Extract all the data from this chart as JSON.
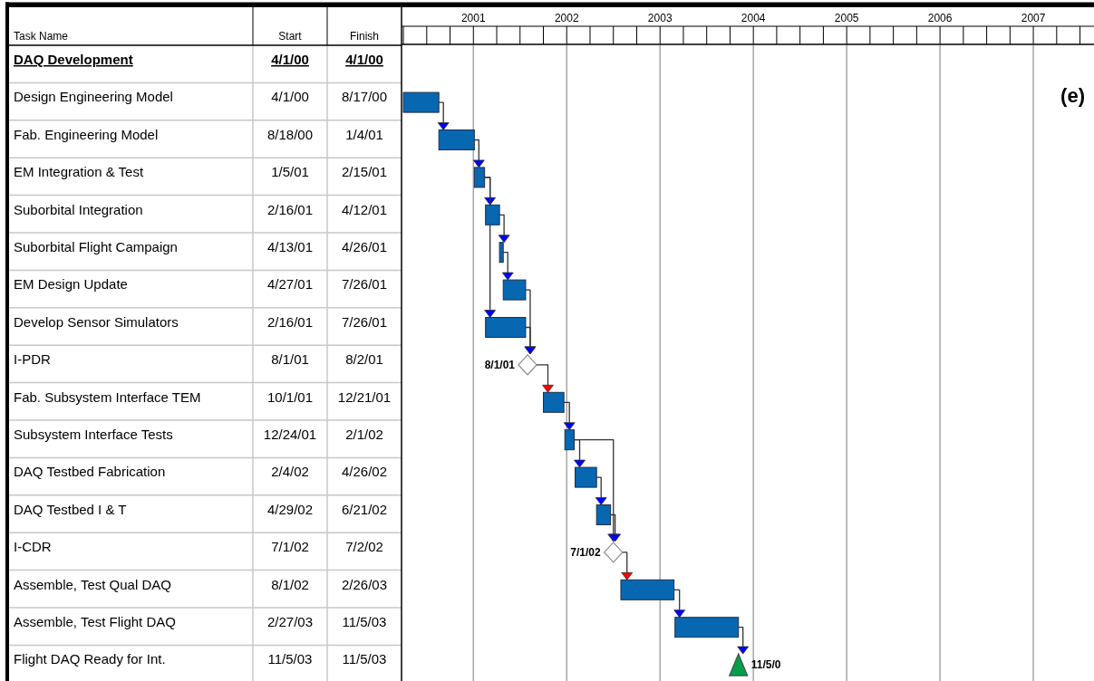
{
  "chart_data": [
    {
      "type": "heatmap",
      "ylabel": "Task Name",
      "categories": [
        "Start",
        "Finish"
      ],
      "y_categories": [
        "DAQ Development",
        "Design Engineering Model",
        "Fab. Engineering Model",
        "EM Integration & Test",
        "Suborbital Integration",
        "Suborbital Flight Campaign",
        "EM Design Update",
        "Develop Sensor Simulators",
        "I-PDR",
        "Fab. Subsystem Interface TEM",
        "Subsystem Interface Tests",
        "DAQ Testbed Fabrication",
        "DAQ Testbed I & T",
        "I-CDR",
        "Assemble, Test Qual DAQ",
        "Assemble, Test Flight DAQ",
        "Flight DAQ Ready for Int."
      ],
      "cells": [
        [
          null,
          null
        ],
        [
          null,
          null
        ],
        [
          null,
          null
        ],
        [
          null,
          null
        ],
        [
          null,
          null
        ],
        [
          null,
          null
        ],
        [
          null,
          null
        ],
        [
          null,
          null
        ],
        [
          null,
          null
        ],
        [
          null,
          null
        ],
        [
          null,
          null
        ],
        [
          null,
          null
        ],
        [
          null,
          null
        ],
        [
          null,
          null
        ],
        [
          null,
          null
        ],
        [
          null,
          null
        ],
        [
          null,
          null
        ]
      ],
      "cell_labels": [
        [
          "4/1/00",
          "4/1/00"
        ],
        [
          "4/1/00",
          "8/17/00"
        ],
        [
          "8/18/00",
          "1/4/01"
        ],
        [
          "1/5/01",
          "2/15/01"
        ],
        [
          "2/16/01",
          "4/12/01"
        ],
        [
          "4/13/01",
          "4/26/01"
        ],
        [
          "4/27/01",
          "7/26/01"
        ],
        [
          "2/16/01",
          "7/26/01"
        ],
        [
          "8/1/01",
          "8/2/01"
        ],
        [
          "10/1/01",
          "12/21/01"
        ],
        [
          "12/24/01",
          "2/1/02"
        ],
        [
          "2/4/02",
          "4/26/02"
        ],
        [
          "4/29/02",
          "6/21/02"
        ],
        [
          "7/1/02",
          "7/2/02"
        ],
        [
          "8/1/02",
          "2/26/03"
        ],
        [
          "2/27/03",
          "11/5/03"
        ],
        [
          "11/5/03",
          "11/5/03"
        ]
      ]
    },
    {
      "type": "bar",
      "orientation": "horizontal",
      "grid": "x",
      "tick_labels": "x",
      "categories": [
        null,
        null,
        null,
        null,
        null,
        null,
        null,
        null,
        null,
        null,
        null,
        null,
        null,
        null,
        null,
        null,
        null
      ],
      "xlim": [
        2000.23,
        2007.65
      ],
      "xticks": [
        2001,
        2002,
        2003,
        2004,
        2005,
        2006,
        2007
      ],
      "series": [
        {
          "type": "bar",
          "color": "#0767b1",
          "base": [
            null,
            2000.25,
            2000.63,
            2001.01,
            2001.13,
            2001.28,
            2001.32,
            2001.13,
            null,
            2001.75,
            2001.98,
            2002.09,
            2002.32,
            null,
            2002.58,
            2003.16,
            null
          ],
          "values": [
            null,
            0.38,
            0.38,
            0.11,
            0.15,
            0.04,
            0.24,
            0.43,
            null,
            0.22,
            0.1,
            0.23,
            0.15,
            null,
            0.57,
            0.68,
            null
          ]
        },
        {
          "type": "scatter",
          "marker": "diamond",
          "color": "#ffffff",
          "values": [
            null,
            null,
            null,
            null,
            null,
            null,
            null,
            null,
            2001.58,
            null,
            null,
            null,
            null,
            2002.5,
            null,
            null,
            null
          ],
          "value_labels": [
            null,
            null,
            null,
            null,
            null,
            null,
            null,
            null,
            "8/1/01",
            null,
            null,
            null,
            null,
            "7/1/02",
            null,
            null,
            null
          ]
        },
        {
          "type": "scatter",
          "marker": "triangle",
          "color": "#00a04a",
          "values": [
            null,
            null,
            null,
            null,
            null,
            null,
            null,
            null,
            null,
            null,
            null,
            null,
            null,
            null,
            null,
            null,
            2003.84
          ],
          "value_labels": [
            null,
            null,
            null,
            null,
            null,
            null,
            null,
            null,
            null,
            null,
            null,
            null,
            null,
            null,
            null,
            null,
            "11/5/0"
          ]
        }
      ],
      "annotations": [
        "(e)"
      ]
    }
  ]
}
